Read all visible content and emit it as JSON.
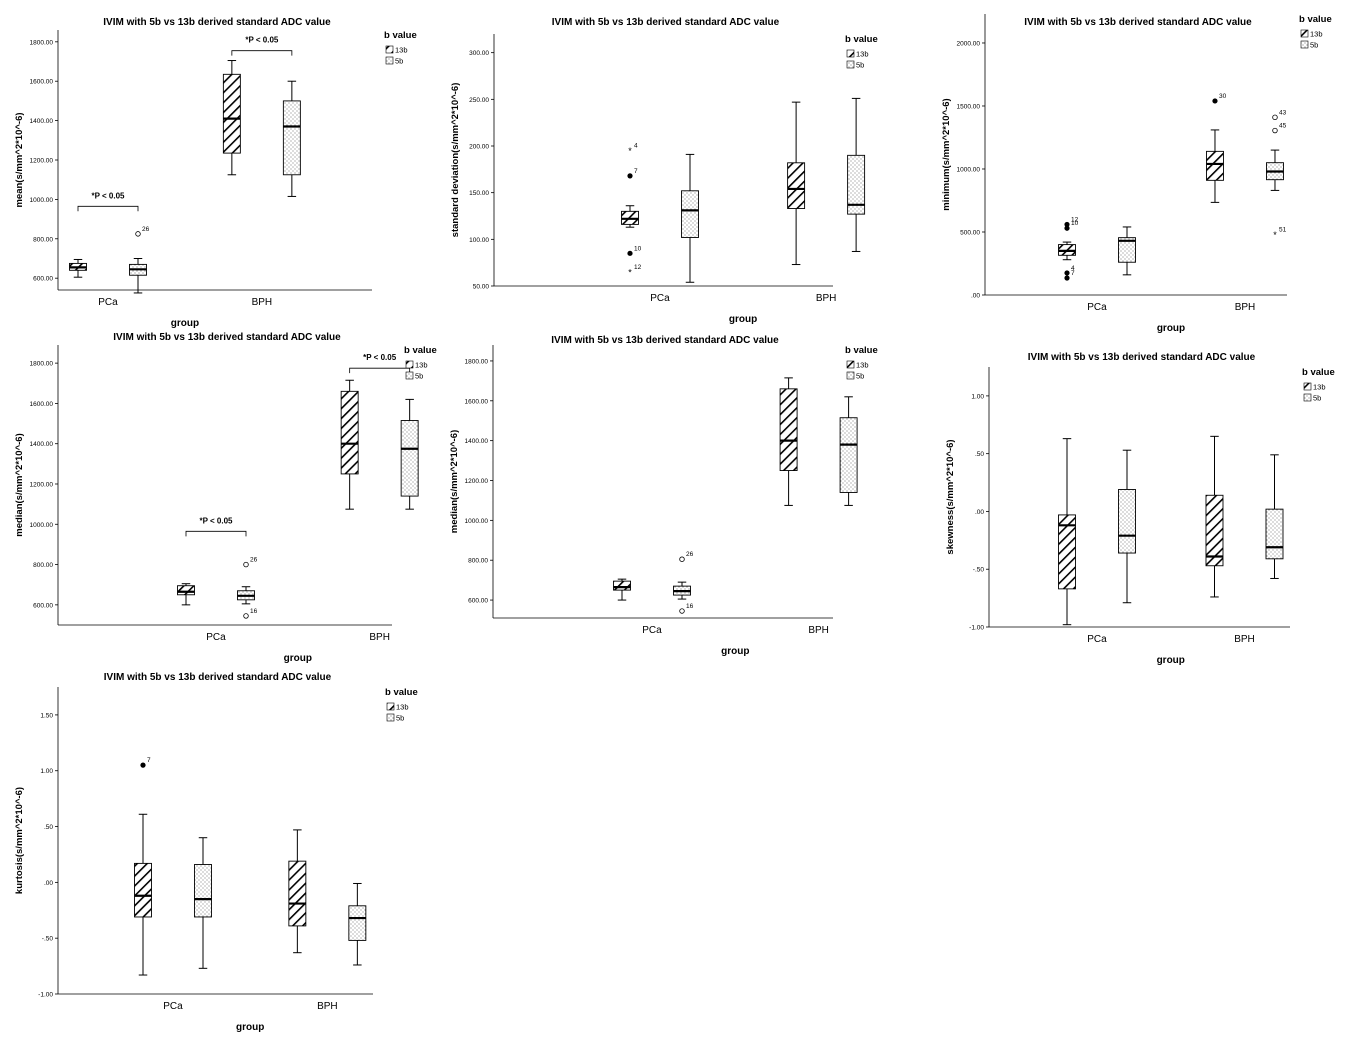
{
  "colors": {
    "axis": "#000000",
    "box_13b_fill": "#ffffff",
    "box_5b_fill": "#ffffff",
    "hatch": "#000000",
    "dots": "#555555"
  },
  "chart_data": [
    {
      "id": "mean",
      "type": "box",
      "title": "IVIM with 5b vs 13b derived standard ADC value",
      "xlabel": "group",
      "ylabel": "mean(s/mm^2*10^-6)",
      "ylim": [
        540,
        1860
      ],
      "yticks": [
        600,
        800,
        1000,
        1200,
        1400,
        1600,
        1800
      ],
      "ytick_labels": [
        "600.00",
        "800.00",
        "1000.00",
        "1200.00",
        "1400.00",
        "1600.00",
        "1800.00"
      ],
      "categories": [
        "PCa",
        "BPH"
      ],
      "legend": {
        "title": "b value",
        "items": [
          "13b",
          "5b"
        ]
      },
      "series": [
        {
          "name": "13b",
          "boxes": [
            {
              "min": 605,
              "q1": 640,
              "median": 655,
              "q3": 675,
              "max": 695,
              "outliers": []
            },
            {
              "min": 1125,
              "q1": 1235,
              "median": 1410,
              "q3": 1635,
              "max": 1705,
              "outliers": []
            }
          ]
        },
        {
          "name": "5b",
          "boxes": [
            {
              "min": 525,
              "q1": 615,
              "median": 645,
              "q3": 670,
              "max": 700,
              "outliers": [
                {
                  "value": 825,
                  "label": "26",
                  "marker": "circle"
                }
              ]
            },
            {
              "min": 1015,
              "q1": 1125,
              "median": 1370,
              "q3": 1500,
              "max": 1600,
              "outliers": []
            }
          ]
        }
      ],
      "annotations": [
        {
          "text": "*P < 0.05",
          "category": "PCa",
          "value": 965
        },
        {
          "text": "*P < 0.05",
          "category": "BPH",
          "value": 1755
        }
      ]
    },
    {
      "id": "sd",
      "type": "box",
      "title": "IVIM with 5b vs 13b derived standard ADC value",
      "xlabel": "group",
      "ylabel": "standard deviation(s/mm^2*10^-6)",
      "ylim": [
        50,
        320
      ],
      "yticks": [
        50,
        100,
        150,
        200,
        250,
        300
      ],
      "ytick_labels": [
        "50.00",
        "100.00",
        "150.00",
        "200.00",
        "250.00",
        "300.00"
      ],
      "categories": [
        "PCa",
        "BPH"
      ],
      "legend": {
        "title": "b value",
        "items": [
          "13b",
          "5b"
        ]
      },
      "series": [
        {
          "name": "13b",
          "boxes": [
            {
              "min": 113,
              "q1": 116,
              "median": 122,
              "q3": 130,
              "max": 136,
              "outliers": [
                {
                  "value": 195,
                  "label": "4",
                  "marker": "star"
                },
                {
                  "value": 168,
                  "label": "7",
                  "marker": "dot"
                },
                {
                  "value": 85,
                  "label": "10",
                  "marker": "dot"
                },
                {
                  "value": 65,
                  "label": "12",
                  "marker": "star"
                }
              ]
            },
            {
              "min": 73,
              "q1": 133,
              "median": 154,
              "q3": 182,
              "max": 247,
              "outliers": []
            }
          ]
        },
        {
          "name": "5b",
          "boxes": [
            {
              "min": 54,
              "q1": 102,
              "median": 131,
              "q3": 152,
              "max": 191,
              "outliers": []
            },
            {
              "min": 87,
              "q1": 127,
              "median": 137,
              "q3": 190,
              "max": 251,
              "outliers": []
            }
          ]
        }
      ],
      "annotations": []
    },
    {
      "id": "minimum",
      "type": "box",
      "title": "IVIM with 5b vs 13b derived standard ADC value",
      "xlabel": "group",
      "ylabel": "minimum(s/mm^2*10^-6)",
      "ylim": [
        0,
        2230
      ],
      "yticks": [
        0,
        500,
        1000,
        1500,
        2000
      ],
      "ytick_labels": [
        ".00",
        "500.00",
        "1000.00",
        "1500.00",
        "2000.00"
      ],
      "categories": [
        "PCa",
        "BPH"
      ],
      "legend": {
        "title": "b value",
        "items": [
          "13b",
          "5b"
        ]
      },
      "series": [
        {
          "name": "13b",
          "boxes": [
            {
              "min": 280,
              "q1": 315,
              "median": 350,
              "q3": 400,
              "max": 420,
              "outliers": [
                {
                  "value": 560,
                  "label": "12",
                  "marker": "dot"
                },
                {
                  "value": 530,
                  "label": "10",
                  "marker": "dot"
                },
                {
                  "value": 175,
                  "label": "4",
                  "marker": "dot"
                },
                {
                  "value": 135,
                  "label": "7",
                  "marker": "dot"
                }
              ]
            },
            {
              "min": 735,
              "q1": 910,
              "median": 1040,
              "q3": 1140,
              "max": 1310,
              "outliers": [
                {
                  "value": 1540,
                  "label": "30",
                  "marker": "dot"
                }
              ]
            }
          ]
        },
        {
          "name": "5b",
          "boxes": [
            {
              "min": 160,
              "q1": 260,
              "median": 430,
              "q3": 455,
              "max": 540,
              "outliers": []
            },
            {
              "min": 830,
              "q1": 915,
              "median": 980,
              "q3": 1050,
              "max": 1150,
              "outliers": [
                {
                  "value": 1410,
                  "label": "43",
                  "marker": "circle"
                },
                {
                  "value": 1305,
                  "label": "45",
                  "marker": "circle"
                },
                {
                  "value": 480,
                  "label": "51",
                  "marker": "star"
                }
              ]
            }
          ]
        }
      ],
      "annotations": []
    },
    {
      "id": "median_sig",
      "type": "box",
      "title": "IVIM with 5b vs 13b derived standard ADC value",
      "xlabel": "group",
      "ylabel": "median(s/mm^2*10^-6)",
      "ylim": [
        500,
        1890
      ],
      "yticks": [
        600,
        800,
        1000,
        1200,
        1400,
        1600,
        1800
      ],
      "ytick_labels": [
        "600.00",
        "800.00",
        "1000.00",
        "1200.00",
        "1400.00",
        "1600.00",
        "1800.00"
      ],
      "categories": [
        "PCa",
        "BPH"
      ],
      "legend": {
        "title": "b value",
        "items": [
          "13b",
          "5b"
        ]
      },
      "series": [
        {
          "name": "13b",
          "boxes": [
            {
              "min": 600,
              "q1": 650,
              "median": 665,
              "q3": 695,
              "max": 705,
              "outliers": []
            },
            {
              "min": 1075,
              "q1": 1250,
              "median": 1400,
              "q3": 1660,
              "max": 1715,
              "outliers": []
            }
          ]
        },
        {
          "name": "5b",
          "boxes": [
            {
              "min": 605,
              "q1": 625,
              "median": 645,
              "q3": 670,
              "max": 690,
              "outliers": [
                {
                  "value": 800,
                  "label": "26",
                  "marker": "circle"
                },
                {
                  "value": 545,
                  "label": "16",
                  "marker": "circle"
                }
              ]
            },
            {
              "min": 1075,
              "q1": 1140,
              "median": 1375,
              "q3": 1515,
              "max": 1620,
              "outliers": []
            }
          ]
        }
      ],
      "annotations": [
        {
          "text": "*P < 0.05",
          "category": "PCa",
          "value": 965
        },
        {
          "text": "*P < 0.05",
          "category": "BPH",
          "value": 1775
        }
      ]
    },
    {
      "id": "median",
      "type": "box",
      "title": "IVIM with 5b vs 13b derived standard ADC value",
      "xlabel": "group",
      "ylabel": "median(s/mm^2*10^-6)",
      "ylim": [
        510,
        1880
      ],
      "yticks": [
        600,
        800,
        1000,
        1200,
        1400,
        1600,
        1800
      ],
      "ytick_labels": [
        "600.00",
        "800.00",
        "1000.00",
        "1200.00",
        "1400.00",
        "1600.00",
        "1800.00"
      ],
      "categories": [
        "PCa",
        "BPH"
      ],
      "legend": {
        "title": "b value",
        "items": [
          "13b",
          "5b"
        ]
      },
      "series": [
        {
          "name": "13b",
          "boxes": [
            {
              "min": 600,
              "q1": 650,
              "median": 665,
              "q3": 695,
              "max": 705,
              "outliers": []
            },
            {
              "min": 1075,
              "q1": 1250,
              "median": 1400,
              "q3": 1660,
              "max": 1715,
              "outliers": []
            }
          ]
        },
        {
          "name": "5b",
          "boxes": [
            {
              "min": 605,
              "q1": 625,
              "median": 645,
              "q3": 670,
              "max": 690,
              "outliers": [
                {
                  "value": 805,
                  "label": "26",
                  "marker": "circle"
                },
                {
                  "value": 545,
                  "label": "16",
                  "marker": "circle"
                }
              ]
            },
            {
              "min": 1075,
              "q1": 1140,
              "median": 1380,
              "q3": 1515,
              "max": 1620,
              "outliers": []
            }
          ]
        }
      ],
      "annotations": []
    },
    {
      "id": "skewness",
      "type": "box",
      "title": "IVIM with 5b vs 13b derived standard ADC value",
      "xlabel": "group",
      "ylabel": "skewness(s/mm^2*10^-6)",
      "ylim": [
        -1.0,
        1.25
      ],
      "yticks": [
        -1.0,
        -0.5,
        0.0,
        0.5,
        1.0
      ],
      "ytick_labels": [
        "-1.00",
        "-.50",
        ".00",
        ".50",
        "1.00"
      ],
      "categories": [
        "PCa",
        "BPH"
      ],
      "legend": {
        "title": "b value",
        "items": [
          "13b",
          "5b"
        ]
      },
      "series": [
        {
          "name": "13b",
          "boxes": [
            {
              "min": -0.98,
              "q1": -0.67,
              "median": -0.12,
              "q3": -0.03,
              "max": 0.63,
              "outliers": []
            },
            {
              "min": -0.74,
              "q1": -0.47,
              "median": -0.39,
              "q3": 0.14,
              "max": 0.65,
              "outliers": []
            }
          ]
        },
        {
          "name": "5b",
          "boxes": [
            {
              "min": -0.79,
              "q1": -0.36,
              "median": -0.21,
              "q3": 0.19,
              "max": 0.53,
              "outliers": []
            },
            {
              "min": -0.58,
              "q1": -0.41,
              "median": -0.31,
              "q3": 0.02,
              "max": 0.49,
              "outliers": []
            }
          ]
        }
      ],
      "annotations": []
    },
    {
      "id": "kurtosis",
      "type": "box",
      "title": "IVIM with 5b vs 13b derived standard ADC value",
      "xlabel": "group",
      "ylabel": "kurtosis(s/mm^2*10^-6)",
      "ylim": [
        -1.0,
        1.75
      ],
      "yticks": [
        -1.0,
        -0.5,
        0.0,
        0.5,
        1.0,
        1.5
      ],
      "ytick_labels": [
        "-1.00",
        "-.50",
        ".00",
        ".50",
        "1.00",
        "1.50"
      ],
      "categories": [
        "PCa",
        "BPH"
      ],
      "legend": {
        "title": "b value",
        "items": [
          "13b",
          "5b"
        ]
      },
      "series": [
        {
          "name": "13b",
          "boxes": [
            {
              "min": -0.83,
              "q1": -0.31,
              "median": -0.12,
              "q3": 0.17,
              "max": 0.61,
              "outliers": [
                {
                  "value": 1.05,
                  "label": "7",
                  "marker": "dot"
                }
              ]
            },
            {
              "min": -0.63,
              "q1": -0.39,
              "median": -0.19,
              "q3": 0.19,
              "max": 0.47,
              "outliers": []
            }
          ]
        },
        {
          "name": "5b",
          "boxes": [
            {
              "min": -0.77,
              "q1": -0.31,
              "median": -0.15,
              "q3": 0.16,
              "max": 0.4,
              "outliers": []
            },
            {
              "min": -0.74,
              "q1": -0.52,
              "median": -0.32,
              "q3": -0.21,
              "max": -0.01,
              "outliers": []
            }
          ]
        }
      ],
      "annotations": []
    }
  ]
}
